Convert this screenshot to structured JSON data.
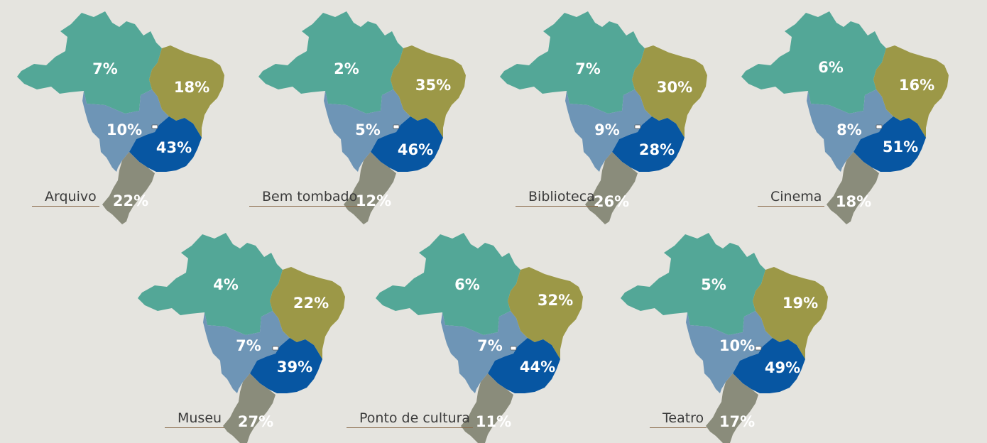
{
  "colors": {
    "norte": "#53a797",
    "nordeste": "#9c9847",
    "centro_oeste": "#6e95b6",
    "sudeste": "#0756a2",
    "sul": "#8a8c7b",
    "df": "#ffffff",
    "label_line": "#8a6a4a",
    "background": "#e5e4df"
  },
  "maps": [
    {
      "label": "Arquivo",
      "values": {
        "norte": "7%",
        "nordeste": "18%",
        "centro_oeste": "10%",
        "sudeste": "43%",
        "sul": "22%"
      }
    },
    {
      "label": "Bem tombado",
      "values": {
        "norte": "2%",
        "nordeste": "35%",
        "centro_oeste": "5%",
        "sudeste": "46%",
        "sul": "12%"
      }
    },
    {
      "label": "Biblioteca",
      "values": {
        "norte": "7%",
        "nordeste": "30%",
        "centro_oeste": "9%",
        "sudeste": "28%",
        "sul": "26%"
      }
    },
    {
      "label": "Cinema",
      "values": {
        "norte": "6%",
        "nordeste": "16%",
        "centro_oeste": "8%",
        "sudeste": "51%",
        "sul": "18%"
      }
    },
    {
      "label": "Museu",
      "values": {
        "norte": "4%",
        "nordeste": "22%",
        "centro_oeste": "7%",
        "sudeste": "39%",
        "sul": "27%"
      }
    },
    {
      "label": "Ponto de cultura",
      "values": {
        "norte": "6%",
        "nordeste": "32%",
        "centro_oeste": "7%",
        "sudeste": "44%",
        "sul": "11%"
      }
    },
    {
      "label": "Teatro",
      "values": {
        "norte": "5%",
        "nordeste": "19%",
        "centro_oeste": "10%",
        "sudeste": "49%",
        "sul": "17%"
      }
    }
  ]
}
